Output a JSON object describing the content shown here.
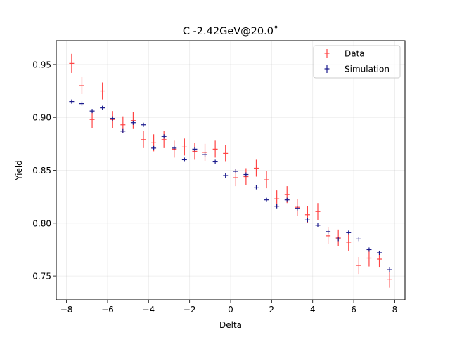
{
  "chart_data": {
    "type": "scatter",
    "title": "C -2.42GeV@20.0˚",
    "xlabel": "Delta",
    "ylabel": "Yield",
    "xlim": [
      -8.5,
      8.5
    ],
    "ylim": [
      0.7275,
      0.9725
    ],
    "xticks": [
      -8,
      -6,
      -4,
      -2,
      0,
      2,
      4,
      6,
      8
    ],
    "xtick_labels": [
      "−8",
      "−6",
      "−4",
      "−2",
      "0",
      "2",
      "4",
      "6",
      "8"
    ],
    "yticks": [
      0.75,
      0.8,
      0.85,
      0.9,
      0.95
    ],
    "ytick_labels": [
      "0.75",
      "0.80",
      "0.85",
      "0.90",
      "0.95"
    ],
    "grid": true,
    "legend_position": "top-right",
    "series": [
      {
        "name": "Data",
        "color": "#ff4444",
        "x": [
          -7.75,
          -7.25,
          -6.75,
          -6.25,
          -5.75,
          -5.25,
          -4.75,
          -4.25,
          -3.75,
          -3.25,
          -2.75,
          -2.25,
          -1.75,
          -1.25,
          -0.75,
          -0.25,
          0.25,
          0.75,
          1.25,
          1.75,
          2.25,
          2.75,
          3.25,
          3.75,
          4.25,
          4.75,
          5.25,
          5.75,
          6.25,
          6.75,
          7.25,
          7.75
        ],
        "y": [
          0.951,
          0.93,
          0.898,
          0.925,
          0.898,
          0.893,
          0.897,
          0.879,
          0.876,
          0.879,
          0.87,
          0.872,
          0.868,
          0.867,
          0.87,
          0.866,
          0.843,
          0.844,
          0.852,
          0.841,
          0.823,
          0.827,
          0.815,
          0.808,
          0.811,
          0.788,
          0.786,
          0.782,
          0.76,
          0.767,
          0.766,
          0.747
        ],
        "yerr": [
          0.009,
          0.008,
          0.008,
          0.008,
          0.008,
          0.008,
          0.008,
          0.008,
          0.008,
          0.008,
          0.008,
          0.008,
          0.008,
          0.008,
          0.008,
          0.008,
          0.008,
          0.008,
          0.008,
          0.008,
          0.008,
          0.008,
          0.008,
          0.008,
          0.008,
          0.008,
          0.008,
          0.008,
          0.008,
          0.008,
          0.008,
          0.008
        ]
      },
      {
        "name": "Simulation",
        "color": "#1a1a8c",
        "x": [
          -7.75,
          -7.25,
          -6.75,
          -6.25,
          -5.75,
          -5.25,
          -4.75,
          -4.25,
          -3.75,
          -3.25,
          -2.75,
          -2.25,
          -1.75,
          -1.25,
          -0.75,
          -0.25,
          0.25,
          0.75,
          1.25,
          1.75,
          2.25,
          2.75,
          3.25,
          3.75,
          4.25,
          4.75,
          5.25,
          5.75,
          6.25,
          6.75,
          7.25,
          7.75
        ],
        "y": [
          0.915,
          0.913,
          0.906,
          0.909,
          0.899,
          0.887,
          0.895,
          0.893,
          0.871,
          0.882,
          0.871,
          0.86,
          0.87,
          0.865,
          0.858,
          0.845,
          0.849,
          0.846,
          0.834,
          0.822,
          0.816,
          0.822,
          0.814,
          0.803,
          0.798,
          0.792,
          0.785,
          0.791,
          0.785,
          0.775,
          0.772,
          0.756
        ],
        "yerr": [
          0.002,
          0.002,
          0.002,
          0.002,
          0.002,
          0.002,
          0.002,
          0.002,
          0.002,
          0.002,
          0.002,
          0.002,
          0.002,
          0.002,
          0.002,
          0.002,
          0.002,
          0.002,
          0.002,
          0.002,
          0.002,
          0.002,
          0.002,
          0.002,
          0.002,
          0.002,
          0.002,
          0.002,
          0.002,
          0.002,
          0.002,
          0.002
        ]
      }
    ]
  }
}
